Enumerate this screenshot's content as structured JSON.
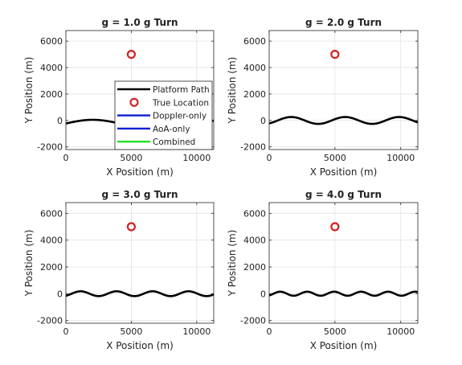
{
  "chart_data": [
    {
      "type": "line",
      "title": "g = 1.0 g Turn",
      "xlabel": "X Position (m)",
      "ylabel": "Y Position (m)",
      "xlim": [
        0,
        11300
      ],
      "ylim": [
        -2200,
        6800
      ],
      "xticks": [
        0,
        5000,
        10000
      ],
      "yticks": [
        -2000,
        0,
        2000,
        4000,
        6000
      ],
      "grid": true,
      "path": {
        "amplitude": 280,
        "period": 8200,
        "phase": 0,
        "center_y": -230
      },
      "true_location": {
        "x": 5000,
        "y": 5000
      },
      "legend": {
        "position": "lower-right",
        "entries": [
          {
            "label": "Platform Path",
            "color": "#000000",
            "marker": "line"
          },
          {
            "label": "True Location",
            "color": "#d62020",
            "marker": "circle"
          },
          {
            "label": "Doppler-only",
            "color": "#0a1fd0",
            "marker": "line"
          },
          {
            "label": "AoA-only",
            "color": "#0a1fd0",
            "marker": "line"
          },
          {
            "label": "Combined",
            "color": "#22e022",
            "marker": "line"
          }
        ]
      }
    },
    {
      "type": "line",
      "title": "g = 2.0 g Turn",
      "xlabel": "X Position (m)",
      "ylabel": "Y Position (m)",
      "xlim": [
        0,
        11300
      ],
      "ylim": [
        -2200,
        6800
      ],
      "xticks": [
        0,
        5000,
        10000
      ],
      "yticks": [
        -2000,
        0,
        2000,
        4000,
        6000
      ],
      "grid": true,
      "path": {
        "amplitude": 260,
        "period": 4100,
        "phase": -1.0,
        "center_y": 0
      },
      "true_location": {
        "x": 5000,
        "y": 5000
      }
    },
    {
      "type": "line",
      "title": "g = 3.0 g Turn",
      "xlabel": "X Position (m)",
      "ylabel": "Y Position (m)",
      "xlim": [
        0,
        11300
      ],
      "ylim": [
        -2200,
        6800
      ],
      "xticks": [
        0,
        5000,
        10000
      ],
      "yticks": [
        -2000,
        0,
        2000,
        4000,
        6000
      ],
      "grid": true,
      "path": {
        "amplitude": 180,
        "period": 2750,
        "phase": -1.0,
        "center_y": 0
      },
      "true_location": {
        "x": 5000,
        "y": 5000
      }
    },
    {
      "type": "line",
      "title": "g = 4.0 g Turn",
      "xlabel": "X Position (m)",
      "ylabel": "Y Position (m)",
      "xlim": [
        0,
        11300
      ],
      "ylim": [
        -2200,
        6800
      ],
      "xticks": [
        0,
        5000,
        10000
      ],
      "yticks": [
        -2000,
        0,
        2000,
        4000,
        6000
      ],
      "grid": true,
      "path": {
        "amplitude": 150,
        "period": 2050,
        "phase": -1.0,
        "center_y": 0
      },
      "true_location": {
        "x": 5000,
        "y": 5000
      }
    }
  ]
}
